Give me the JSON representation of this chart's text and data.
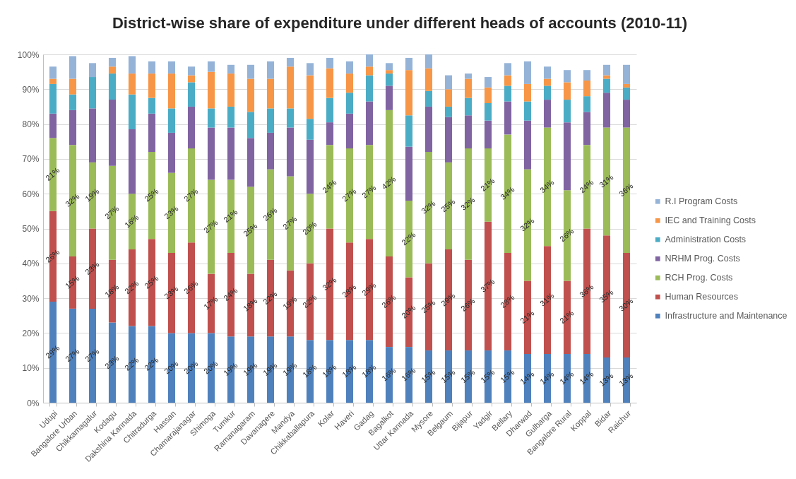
{
  "chart_data": {
    "type": "bar",
    "title": "District-wise share of expenditure under different heads of accounts (2010-11)",
    "categories": [
      "Udupi",
      "Bangalore Urban",
      "Chikkamagalur",
      "Kodagu",
      "Dakshina Kannada",
      "Chitradurga",
      "Hassan",
      "Chamarajanagar",
      "Shimoga",
      "Tumkur",
      "Ramanagaram",
      "Davanagere",
      "Mandya",
      "Chikkaballapura",
      "Kolar",
      "Haveri",
      "Gadag",
      "Bagalkot",
      "Uttar Kannada",
      "Mysore",
      "Belgaum",
      "Bijapur",
      "Yadgir",
      "Bellary",
      "Dharwad",
      "Gulbarga",
      "Bangalore Rural",
      "Koppal",
      "Bidar",
      "Raichur"
    ],
    "stacked": true,
    "ylim": [
      0,
      100
    ],
    "yticks": [
      {
        "value": 0,
        "label": "0%"
      },
      {
        "value": 10,
        "label": "10%"
      },
      {
        "value": 20,
        "label": "20%"
      },
      {
        "value": 30,
        "label": "30%"
      },
      {
        "value": 40,
        "label": "40%"
      },
      {
        "value": 50,
        "label": "50%"
      },
      {
        "value": 60,
        "label": "60%"
      },
      {
        "value": 70,
        "label": "70%"
      },
      {
        "value": 80,
        "label": "80%"
      },
      {
        "value": 90,
        "label": "90%"
      },
      {
        "value": 100,
        "label": "100%"
      }
    ],
    "grid": "y",
    "legend": "right",
    "series": [
      {
        "name": "Infrastructure and Maintenance",
        "color": "#4f81bd",
        "values": [
          29,
          27,
          27,
          23,
          22,
          22,
          20,
          20,
          20,
          19,
          19,
          19,
          19,
          18,
          18,
          18,
          18,
          16,
          16,
          15,
          15,
          15,
          15,
          15,
          14,
          14,
          14,
          14,
          13,
          13
        ],
        "value_labels": [
          "29%",
          "27%",
          "27%",
          "23%",
          "22%",
          "22%",
          "20%",
          "20%",
          "20%",
          "19%",
          "19%",
          "19%",
          "19%",
          "18%",
          "18%",
          "18%",
          "18%",
          "16%",
          "16%",
          "15%",
          "15%",
          "15%",
          "15%",
          "15%",
          "14%",
          "14%",
          "14%",
          "14%",
          "13%",
          "13%"
        ]
      },
      {
        "name": "Human Resources",
        "color": "#c0504d",
        "values": [
          26,
          15,
          23,
          18,
          22,
          25,
          23,
          26,
          17,
          24,
          18,
          22,
          19,
          22,
          32,
          28,
          29,
          26,
          20,
          25,
          29,
          26,
          37,
          28,
          21,
          31,
          21,
          36,
          35,
          30
        ],
        "value_labels": [
          "26%",
          "15%",
          "23%",
          "18%",
          "22%",
          "25%",
          "23%",
          "26%",
          "17%",
          "24%",
          "18%",
          "22%",
          "19%",
          "22%",
          "32%",
          "28%",
          "29%",
          "26%",
          "20%",
          "25%",
          "29%",
          "26%",
          "37%",
          "28%",
          "21%",
          "31%",
          "21%",
          "36%",
          "35%",
          "30%"
        ]
      },
      {
        "name": "RCH Prog. Costs",
        "color": "#9bbb59",
        "values": [
          21,
          32,
          19,
          27,
          16,
          25,
          23,
          27,
          27,
          21,
          25,
          26,
          27,
          20,
          24,
          27,
          27,
          42,
          22,
          32,
          25,
          32,
          21,
          34,
          32,
          34,
          26,
          24,
          31,
          36
        ],
        "value_labels": [
          "21%",
          "32%",
          "19%",
          "27%",
          "16%",
          "25%",
          "23%",
          "27%",
          "27%",
          "21%",
          "25%",
          "26%",
          "27%",
          "20%",
          "24%",
          "27%",
          "27%",
          "42%",
          "22%",
          "32%",
          "25%",
          "32%",
          "21%",
          "34%",
          "32%",
          "34%",
          "26%",
          "24%",
          "31%",
          "36%"
        ]
      },
      {
        "name": "NRHM Prog. Costs",
        "color": "#8064a2",
        "values": [
          7,
          10,
          15.5,
          19,
          18.5,
          11,
          11.5,
          12,
          15,
          15,
          14,
          10.5,
          14,
          15.5,
          6.5,
          10,
          12.5,
          7,
          15.5,
          13,
          13,
          9.5,
          8,
          9.5,
          14,
          8,
          19.5,
          9.5,
          10,
          8
        ]
      },
      {
        "name": "Administration Costs",
        "color": "#4bacc6",
        "values": [
          8.5,
          4.5,
          9,
          7.5,
          10,
          4.5,
          7,
          7,
          5.5,
          6,
          7.5,
          7,
          5.5,
          6,
          7,
          6,
          7.5,
          3.5,
          9,
          4.5,
          3,
          5,
          5,
          4.5,
          5.5,
          4,
          6.5,
          4.5,
          4,
          3.5
        ]
      },
      {
        "name": "IEC and Training Costs",
        "color": "#f79646",
        "values": [
          1.5,
          4.5,
          null,
          2,
          6,
          7,
          10,
          2,
          10.5,
          9.5,
          9.5,
          8.5,
          12,
          12.5,
          8.5,
          5.5,
          2.5,
          1,
          13,
          6.5,
          5,
          5.5,
          4.5,
          3,
          5,
          2,
          5,
          4.5,
          1,
          1
        ]
      },
      {
        "name": "R.I Program Costs",
        "color": "#95b3d7",
        "values": [
          3.5,
          6.5,
          4,
          2.5,
          5,
          3.5,
          3.5,
          2.5,
          3,
          2.5,
          4,
          5,
          2.5,
          3.5,
          3,
          3.5,
          3.5,
          2,
          3.5,
          4,
          4,
          1.5,
          3,
          3.5,
          6.5,
          3.5,
          3.5,
          3,
          3,
          5.5
        ]
      }
    ]
  }
}
